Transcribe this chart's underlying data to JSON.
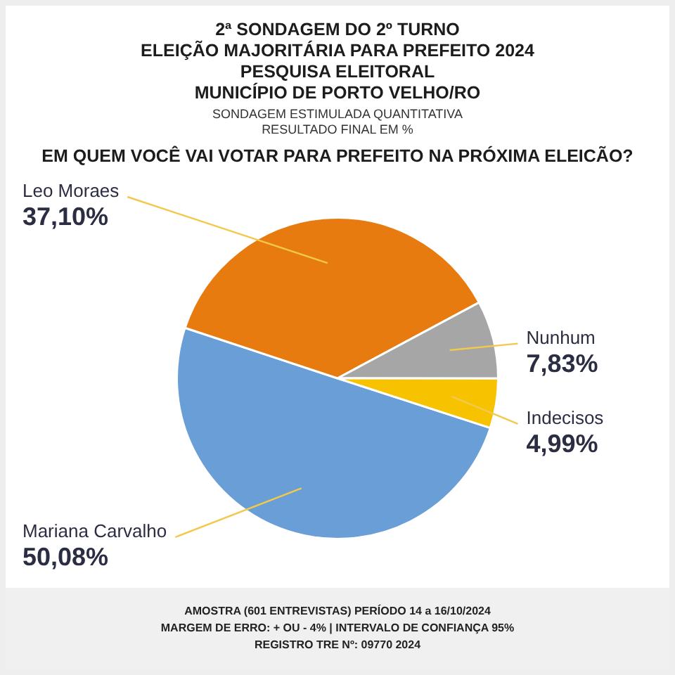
{
  "chart_data": {
    "type": "pie",
    "title": "2ª SONDAGEM DO 2º TURNO\nELEIÇÃO MAJORITÁRIA PARA PREFEITO 2024\nPESQUISA ELEITORAL\nMUNICÍPIO DE PORTO VELHO/RO",
    "subtitle": "SONDAGEM ESTIMULADA QUANTITATIVA\nRESULTADO FINAL EM %",
    "categories": [
      "Mariana Carvalho",
      "Leo Moraes",
      "Nunhum",
      "Indecisos"
    ],
    "values": [
      50.08,
      37.1,
      7.83,
      4.99
    ],
    "colors": [
      "#6a9ed6",
      "#e87b10",
      "#a6a6a6",
      "#f7c200"
    ],
    "value_labels": [
      "50,08%",
      "37,10%",
      "7,83%",
      "4,99%"
    ],
    "annotations": [
      "EM QUEM VOCÊ VAI VOTAR PARA PREFEITO NA PRÓXIMA ELEICÃO?",
      "AMOSTRA (601 ENTREVISTAS) PERÍODO 14 a 16/10/2024",
      "MARGEM DE ERRO: + OU - 4% | INTERVALO DE CONFIANÇA 95%",
      "REGISTRO TRE Nº: 09770 2024"
    ]
  }
}
